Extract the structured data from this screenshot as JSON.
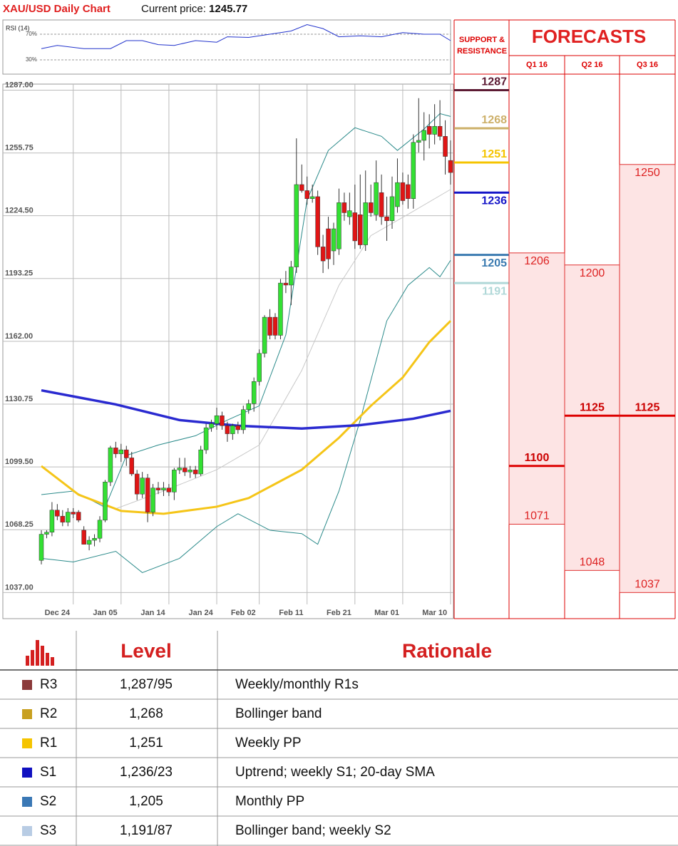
{
  "chart_data": [
    {
      "type": "line",
      "title": "RSI (14)",
      "color": "#2233cc",
      "x": [
        0,
        3,
        8,
        13,
        16,
        19,
        22,
        25,
        29,
        33,
        35,
        39,
        43,
        47,
        50,
        53,
        56,
        60,
        64,
        68,
        72,
        75,
        77
      ],
      "values": [
        47.5,
        52.5,
        47.5,
        47.5,
        60,
        60,
        53.75,
        52.5,
        60,
        57.5,
        66,
        65,
        70,
        75,
        85,
        78.75,
        66,
        67.5,
        66,
        72.5,
        70,
        70,
        60
      ],
      "ylim": [
        10,
        90
      ],
      "yticks": [
        {
          "value": 70,
          "label": "70%"
        },
        {
          "value": 30,
          "label": "30%"
        }
      ],
      "grid": true
    },
    {
      "type": "candlestick",
      "title": "XAU/USD Daily Chart",
      "current_price_label": "Current price:",
      "current_price": 1245.77,
      "categories": [
        null,
        null,
        null,
        "Dec 24",
        null,
        null,
        null,
        null,
        null,
        null,
        null,
        null,
        "Jan 05",
        null,
        null,
        null,
        null,
        null,
        null,
        null,
        null,
        "Jan 14",
        null,
        null,
        null,
        null,
        null,
        null,
        null,
        null,
        "Jan 24",
        null,
        null,
        null,
        null,
        null,
        null,
        null,
        "Feb 02",
        null,
        null,
        null,
        null,
        null,
        null,
        null,
        null,
        "Feb 11",
        null,
        null,
        null,
        null,
        null,
        null,
        null,
        null,
        "Feb 21",
        null,
        null,
        null,
        null,
        null,
        null,
        null,
        null,
        "Mar 01",
        null,
        null,
        null,
        null,
        null,
        null,
        null,
        null,
        "Mar 10",
        null,
        null,
        null
      ],
      "open": [
        1053,
        1066,
        1067,
        1078,
        1075,
        1072,
        1077,
        1077,
        1068,
        1061,
        1063,
        1064,
        1073,
        1092,
        1109,
        1106,
        1108,
        1104,
        1096,
        1086,
        1094,
        1077,
        1089,
        1088,
        1089,
        1087,
        1098,
        1099,
        1097,
        1098,
        1096,
        1108,
        1119,
        1121,
        1125,
        1120,
        1116,
        1120,
        1118,
        1128,
        1131,
        1142,
        1156,
        1174,
        1174,
        1165,
        1191,
        1190,
        1199,
        1240,
        1237,
        1233,
        1234,
        1209,
        1218,
        1207,
        1208,
        1231,
        1224,
        1226,
        1225,
        1210,
        1231,
        1225,
        1236,
        1224,
        1222,
        1229,
        1241,
        1240,
        1233,
        1261,
        1262,
        1269,
        1265,
        1269,
        1264,
        1252
      ],
      "high": [
        1068,
        1068,
        1082,
        1081,
        1078,
        1079,
        1079,
        1078,
        1070,
        1065,
        1066,
        1075,
        1093,
        1110,
        1112,
        1111,
        1110,
        1107,
        1098,
        1097,
        1096,
        1091,
        1092,
        1092,
        1091,
        1099,
        1104,
        1104,
        1100,
        1100,
        1110,
        1121,
        1123,
        1129,
        1127,
        1122,
        1121,
        1122,
        1130,
        1133,
        1144,
        1158,
        1175,
        1178,
        1176,
        1193,
        1197,
        1202,
        1263,
        1250,
        1244,
        1240,
        1237,
        1215,
        1224,
        1221,
        1238,
        1236,
        1236,
        1240,
        1245,
        1247,
        1240,
        1252,
        1245,
        1234,
        1244,
        1253,
        1246,
        1245,
        1265,
        1283,
        1276,
        1275,
        1280,
        1282,
        1272,
        1262
      ],
      "low": [
        1051,
        1064,
        1065,
        1073,
        1070,
        1070,
        1074,
        1072,
        1061,
        1058,
        1060,
        1062,
        1072,
        1090,
        1104,
        1102,
        1100,
        1095,
        1083,
        1084,
        1072,
        1075,
        1086,
        1085,
        1085,
        1083,
        1096,
        1095,
        1094,
        1094,
        1095,
        1106,
        1117,
        1118,
        1118,
        1112,
        1113,
        1116,
        1116,
        1126,
        1127,
        1140,
        1154,
        1163,
        1163,
        1163,
        1186,
        1180,
        1196,
        1236,
        1230,
        1231,
        1205,
        1196,
        1198,
        1200,
        1205,
        1222,
        1220,
        1208,
        1208,
        1207,
        1224,
        1222,
        1220,
        1212,
        1218,
        1226,
        1230,
        1228,
        1228,
        1256,
        1252,
        1258,
        1260,
        1262,
        1245,
        1240
      ],
      "close": [
        1066,
        1067,
        1078,
        1075,
        1072,
        1077,
        1076,
        1073,
        1061,
        1063,
        1064,
        1073,
        1092,
        1109,
        1106,
        1108,
        1104,
        1096,
        1086,
        1094,
        1077,
        1089,
        1088,
        1089,
        1087,
        1098,
        1099,
        1097,
        1098,
        1096,
        1108,
        1119,
        1121,
        1125,
        1120,
        1116,
        1120,
        1118,
        1128,
        1131,
        1142,
        1156,
        1174,
        1165,
        1165,
        1191,
        1190,
        1199,
        1240,
        1237,
        1233,
        1234,
        1209,
        1202,
        1203,
        1218,
        1231,
        1226,
        1227,
        1212,
        1210,
        1231,
        1226,
        1241,
        1224,
        1222,
        1234,
        1241,
        1232,
        1233,
        1261,
        1262,
        1267,
        1265,
        1269,
        1264,
        1254,
        1246
      ],
      "up_color": "#33e033",
      "down_color": "#e01515",
      "series": [
        {
          "color": "#c8c8c8",
          "x": [
            14,
            23,
            33,
            41,
            49,
            56,
            62,
            69,
            77
          ],
          "values": [
            1078.7,
            1087.5,
            1098.1,
            1110.4,
            1147.5,
            1189.9,
            1214.6,
            1225.2,
            1237.6
          ]
        },
        {
          "color": "#2a8a8a",
          "x": [
            0,
            6,
            12,
            16,
            22,
            29,
            35,
            41,
            46,
            50,
            54,
            59,
            64,
            67,
            72,
            75,
            77
          ],
          "values": [
            1085.7,
            1087.5,
            1079.4,
            1105.2,
            1110.4,
            1115,
            1122.8,
            1129.9,
            1165.2,
            1232.3,
            1257,
            1268.3,
            1264,
            1257,
            1267.6,
            1275.3,
            1273.9
          ]
        },
        {
          "color": "#2a8a8a",
          "x": [
            0,
            6,
            14,
            19,
            26,
            33,
            37,
            43,
            49,
            52,
            56,
            60,
            65,
            69,
            73,
            75,
            77
          ],
          "values": [
            1054,
            1052.2,
            1057.5,
            1046.9,
            1054,
            1069.8,
            1076.2,
            1068,
            1066.3,
            1061,
            1087.5,
            1122.8,
            1172.2,
            1189.9,
            1198.7,
            1194.1,
            1202.3
          ]
        },
        {
          "color": "#f5c518",
          "x": [
            0,
            7,
            15,
            23,
            33,
            39,
            49,
            56,
            62,
            68,
            73,
            77
          ],
          "values": [
            1099.9,
            1085.7,
            1077.6,
            1076.2,
            1079.7,
            1084,
            1098.1,
            1114,
            1129.9,
            1144,
            1161.6,
            1172.2
          ]
        },
        {
          "color": "#2a2ad0",
          "x": [
            0,
            14,
            26,
            37,
            49,
            60,
            70,
            77
          ],
          "values": [
            1137.6,
            1130.6,
            1122.8,
            1120,
            1118.6,
            1120.3,
            1123.5,
            1127.4
          ]
        }
      ],
      "ylim": [
        1024,
        1290
      ],
      "yticks": [
        {
          "value": 1287,
          "label": "1287.00"
        },
        {
          "value": 1255.75,
          "label": "1255.75"
        },
        {
          "value": 1224.5,
          "label": "1224.50"
        },
        {
          "value": 1193.25,
          "label": "1193.25"
        },
        {
          "value": 1162,
          "label": "1162.00"
        },
        {
          "value": 1130.75,
          "label": "1130.75"
        },
        {
          "value": 1099.5,
          "label": "1099.50"
        },
        {
          "value": 1068.25,
          "label": "1068.25"
        },
        {
          "value": 1037,
          "label": "1037.00"
        }
      ],
      "grid": true,
      "levels_title": "SUPPORT & RESISTANCE",
      "levels": [
        {
          "value": 1287,
          "color": "#5c1a33"
        },
        {
          "value": 1268,
          "color": "#cdb06a"
        },
        {
          "value": 1251,
          "color": "#f5c400"
        },
        {
          "value": 1236,
          "color": "#1515c8"
        },
        {
          "value": 1205,
          "color": "#3a7ab0"
        },
        {
          "value": 1191,
          "color": "#b0d8d8"
        }
      ],
      "forecasts_title": "FORECASTS",
      "forecasts": [
        {
          "label": "Q1 16",
          "high": 1206,
          "mid": 1100,
          "low": 1071
        },
        {
          "label": "Q2 16",
          "high": 1200,
          "mid": 1125,
          "low": 1048
        },
        {
          "label": "Q3 16",
          "high": 1250,
          "mid": 1125,
          "low": 1037
        }
      ]
    }
  ],
  "table": {
    "header": [
      "Level",
      "Rationale"
    ],
    "rows": [
      {
        "color": "#8b3a3a",
        "label": "R3",
        "level": "1,287/95",
        "rationale": "Weekly/monthly R1s"
      },
      {
        "color": "#c8a020",
        "label": "R2",
        "level": "1,268",
        "rationale": "Bollinger band"
      },
      {
        "color": "#f5c400",
        "label": "R1",
        "level": "1,251",
        "rationale": "Weekly PP"
      },
      {
        "color": "#1010c0",
        "label": "S1",
        "level": "1,236/23",
        "rationale": "Uptrend; weekly S1; 20-day SMA"
      },
      {
        "color": "#3a78b5",
        "label": "S2",
        "level": "1,205",
        "rationale": "Monthly PP"
      },
      {
        "color": "#b8cce4",
        "label": "S3",
        "level": "1,191/87",
        "rationale": "Bollinger band; weekly S2"
      }
    ]
  }
}
